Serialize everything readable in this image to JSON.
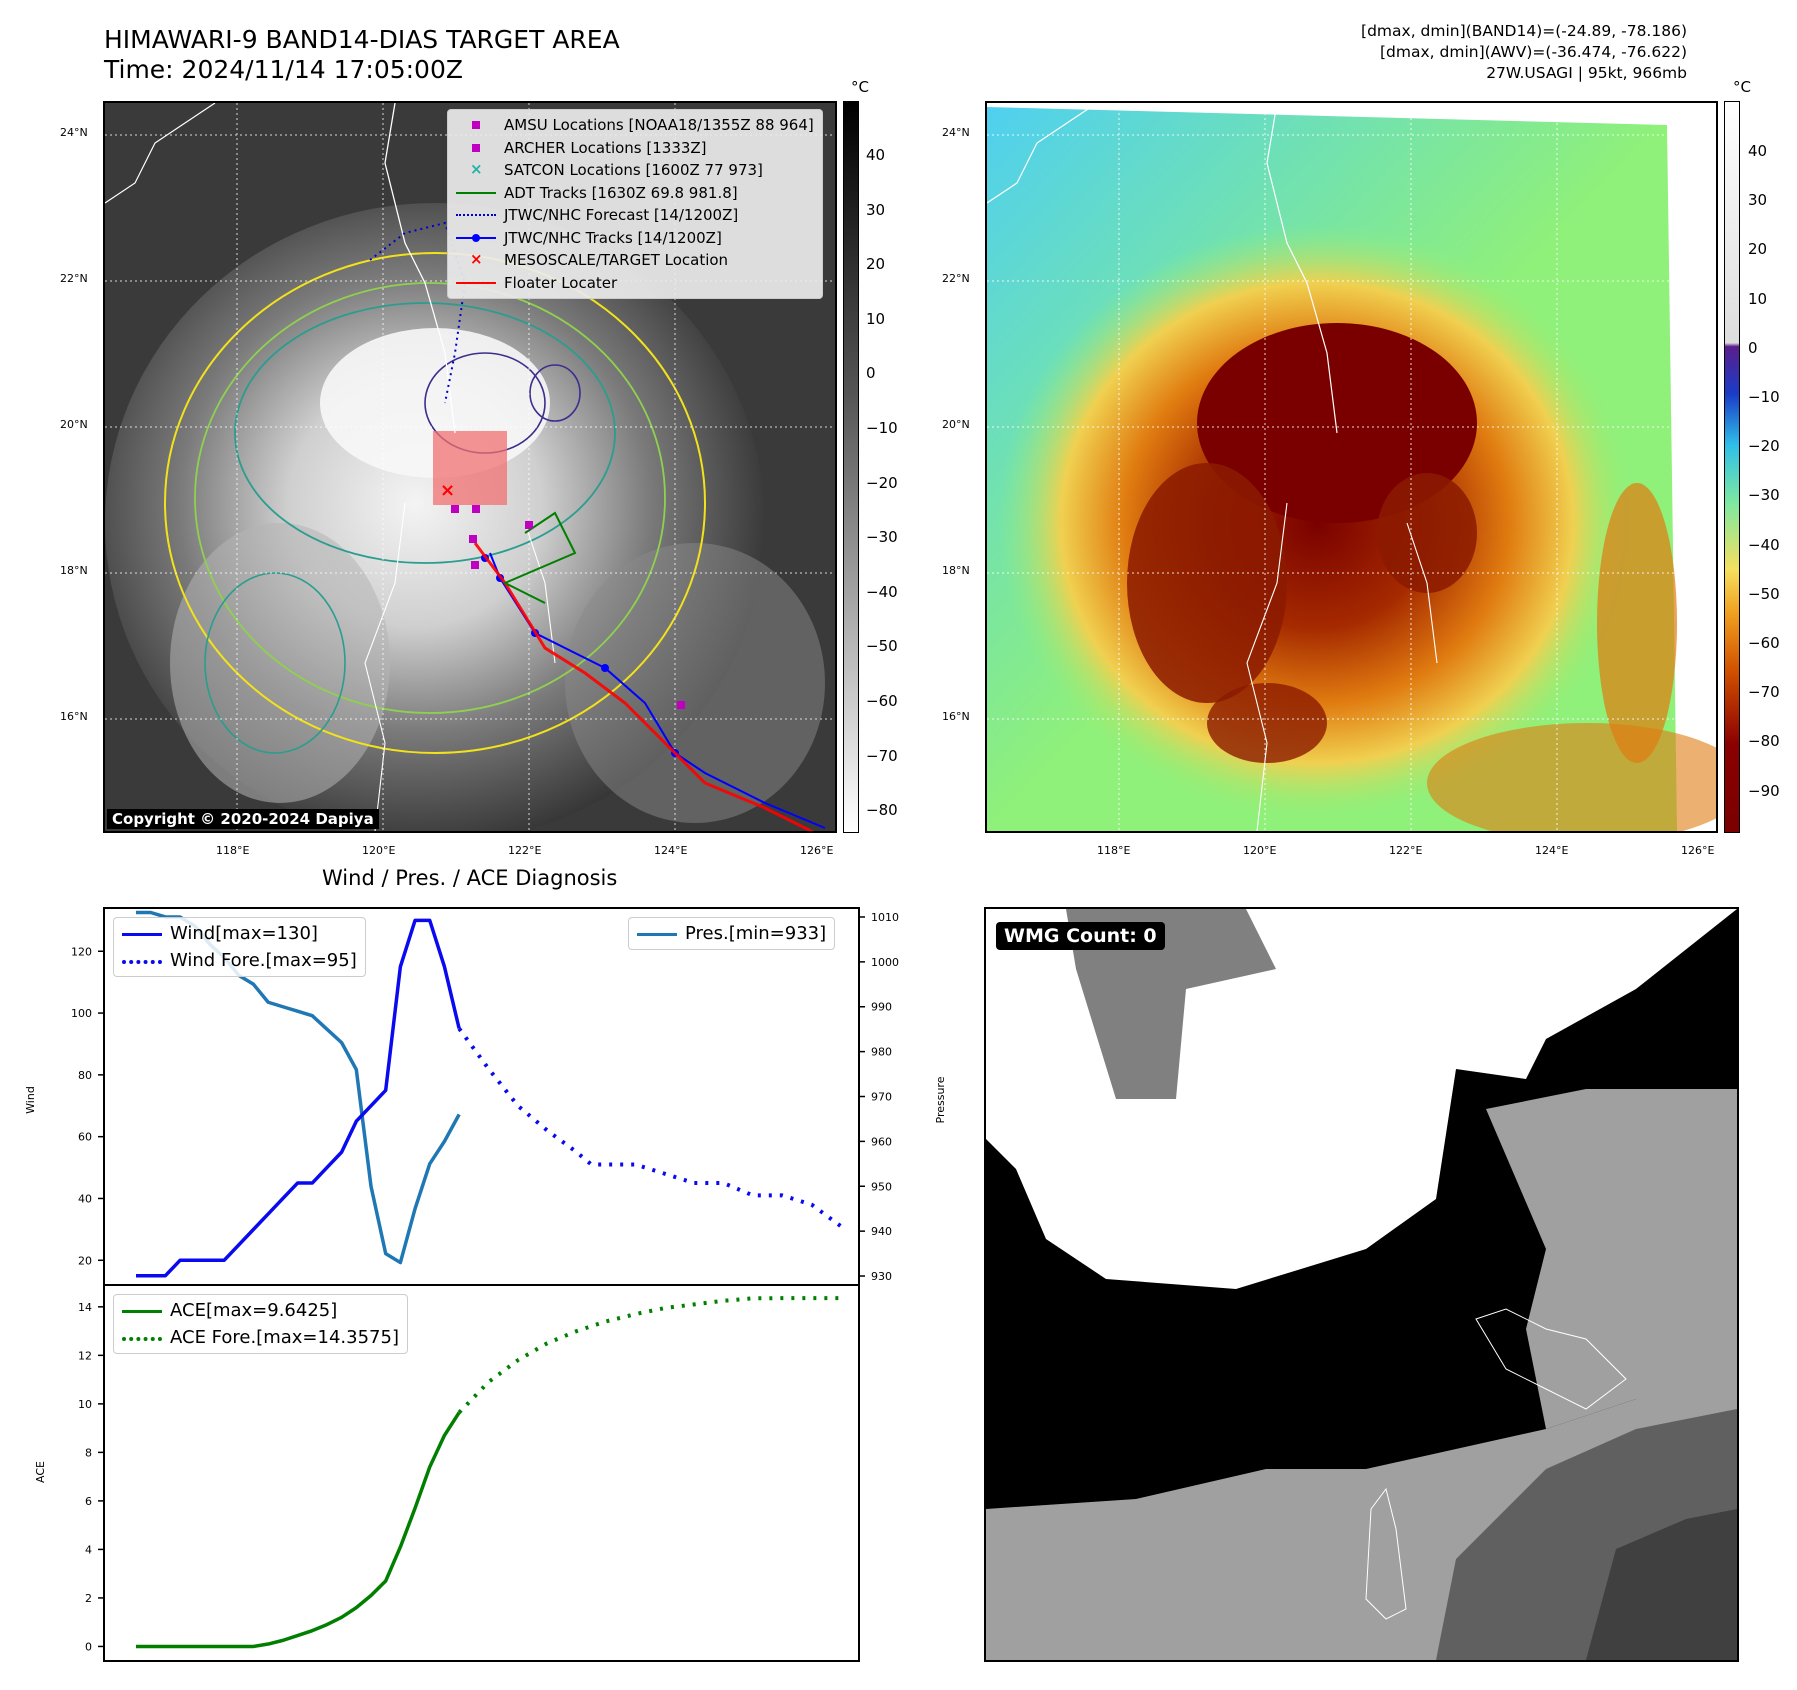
{
  "header": {
    "title_line1": "HIMAWARI-9 BAND14-DIAS TARGET AREA",
    "title_line2": "Time: 2024/11/14 17:05:00Z",
    "info_line1": "[dmax, dmin](BAND14)=(-24.89, -78.186)",
    "info_line2": "[dmax, dmin](AWV)=(-36.474, -76.622)",
    "info_line3": "27W.USAGI | 95kt, 966mb"
  },
  "map": {
    "lon_ticks": [
      "118°E",
      "120°E",
      "122°E",
      "124°E",
      "126°E"
    ],
    "lat_ticks": [
      "24°N",
      "22°N",
      "20°N",
      "18°N",
      "16°N"
    ],
    "copyright": "Copyright © 2020-2024 Dapiya",
    "legend": [
      {
        "label": "AMSU Locations [NOAA18/1355Z 88 964]",
        "icon": "square-marker-icon",
        "color": "#c000c0"
      },
      {
        "label": "ARCHER Locations [1333Z]",
        "icon": "square-marker-icon",
        "color": "#c000c0"
      },
      {
        "label": "SATCON Locations [1600Z 77 973]",
        "icon": "x-marker-icon",
        "color": "#20b2aa"
      },
      {
        "label": "ADT Tracks [1630Z 69.8 981.8]",
        "icon": "solid-line-icon",
        "color": "#008000"
      },
      {
        "label": "JTWC/NHC Forecast [14/1200Z]",
        "icon": "dotted-line-icon",
        "color": "#0000cc"
      },
      {
        "label": "JTWC/NHC Tracks [14/1200Z]",
        "icon": "dot-line-icon",
        "color": "#0000ff"
      },
      {
        "label": "MESOSCALE/TARGET Location",
        "icon": "x-marker-icon",
        "color": "#ff0000"
      },
      {
        "label": "Floater Locater",
        "icon": "solid-line-icon",
        "color": "#ff0000"
      }
    ]
  },
  "colorbar_gray": {
    "unit": "°C",
    "labels": [
      "40",
      "30",
      "20",
      "10",
      "0",
      "−10",
      "−20",
      "−30",
      "−40",
      "−50",
      "−60",
      "−70",
      "−80"
    ]
  },
  "colorbar_color": {
    "unit": "°C",
    "labels": [
      "40",
      "30",
      "20",
      "10",
      "0",
      "−10",
      "−20",
      "−30",
      "−40",
      "−50",
      "−60",
      "−70",
      "−80",
      "−90"
    ]
  },
  "wmg": {
    "label": "WMG Count: 0"
  },
  "colors": {
    "wind": "#0a0af0",
    "pressure": "#1f77b4",
    "ace": "#007f00"
  },
  "chart_data": [
    {
      "type": "line",
      "title": "Wind / Pres. / ACE Diagnosis",
      "ylabel": "Wind",
      "ylabel_right": "Pressure",
      "ylim": [
        12,
        134
      ],
      "ylim_right": [
        928,
        1012
      ],
      "y_ticks": [
        20,
        40,
        60,
        80,
        100,
        120
      ],
      "y_ticks_right": [
        930,
        940,
        950,
        960,
        970,
        980,
        990,
        1000,
        1010
      ],
      "series": [
        {
          "name": "Wind[max=130]",
          "style": "solid",
          "axis": "left",
          "x": [
            0,
            2,
            3,
            5,
            6,
            8,
            9,
            10,
            11,
            12,
            13,
            14,
            15,
            16,
            17,
            18,
            19,
            20,
            21,
            22
          ],
          "values": [
            15,
            15,
            20,
            20,
            20,
            30,
            35,
            40,
            45,
            45,
            50,
            55,
            65,
            70,
            75,
            115,
            130,
            130,
            115,
            95
          ]
        },
        {
          "name": "Wind Fore.[max=95]",
          "style": "dotted",
          "axis": "left",
          "x": [
            22,
            24,
            26,
            28,
            30,
            31,
            32,
            34,
            36,
            38,
            40,
            42,
            44,
            46,
            48
          ],
          "values": [
            95,
            82,
            70,
            62,
            55,
            51,
            51,
            51,
            48,
            45,
            45,
            41,
            41,
            38,
            31
          ]
        },
        {
          "name": "Pres.[min=933]",
          "style": "solid",
          "axis": "right",
          "x": [
            0,
            1,
            2,
            3,
            4,
            5,
            6,
            7,
            8,
            9,
            10,
            11,
            12,
            13,
            14,
            15,
            16,
            17,
            18,
            19,
            20,
            21,
            22
          ],
          "values": [
            1011,
            1011,
            1010,
            1010,
            1008,
            1004,
            1001,
            997,
            995,
            991,
            990,
            989,
            988,
            985,
            982,
            976,
            950,
            935,
            933,
            945,
            955,
            960,
            966
          ]
        }
      ]
    },
    {
      "type": "line",
      "ylabel": "ACE",
      "ylim": [
        -0.6,
        14.9
      ],
      "y_ticks": [
        0,
        2,
        4,
        6,
        8,
        10,
        12,
        14
      ],
      "series": [
        {
          "name": "ACE[max=9.6425]",
          "style": "solid",
          "x": [
            0,
            2,
            4,
            6,
            7,
            8,
            9,
            10,
            11,
            12,
            13,
            14,
            15,
            16,
            17,
            18,
            19,
            20,
            21,
            22
          ],
          "values": [
            0,
            0,
            0,
            0,
            0,
            0,
            0.1,
            0.25,
            0.45,
            0.65,
            0.9,
            1.2,
            1.6,
            2.1,
            2.7,
            4.1,
            5.7,
            7.4,
            8.7,
            9.6425
          ]
        },
        {
          "name": "ACE Fore.[max=14.3575]",
          "style": "dotted",
          "x": [
            22,
            24,
            26,
            28,
            30,
            32,
            34,
            36,
            38,
            40,
            42,
            44,
            46,
            48
          ],
          "values": [
            9.6425,
            10.9,
            11.8,
            12.5,
            13.0,
            13.4,
            13.7,
            13.95,
            14.1,
            14.25,
            14.35,
            14.3575,
            14.3575,
            14.3575
          ]
        }
      ]
    }
  ]
}
